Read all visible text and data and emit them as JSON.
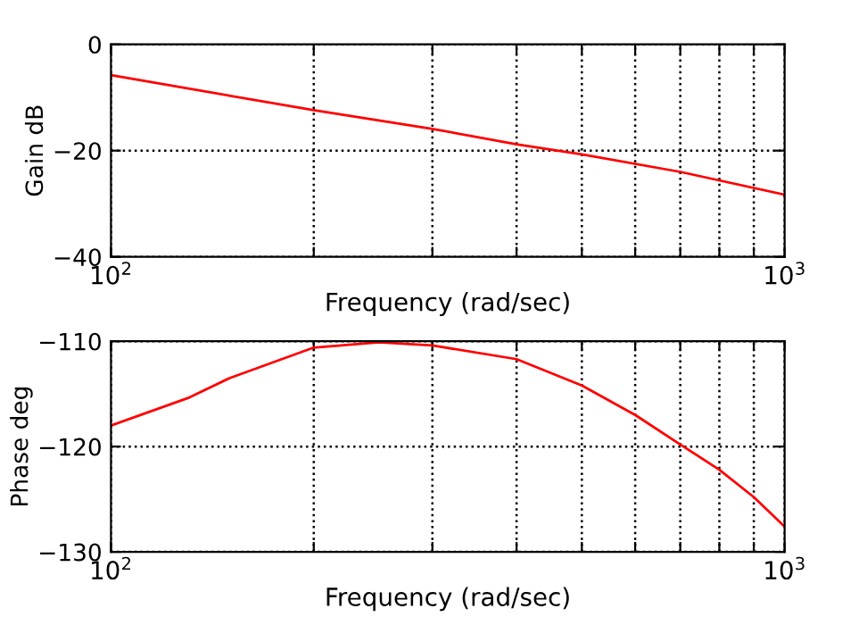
{
  "chart_data": [
    {
      "type": "line",
      "ylabel": "Gain dB",
      "xlabel": "Frequency (rad/sec)",
      "log": "x",
      "grid": true,
      "line_style": "solid",
      "marker": "none",
      "x": [
        100,
        200,
        300,
        400,
        500,
        700,
        1000
      ],
      "series": [
        {
          "color": "#ff0000",
          "values": [
            -5.8,
            -12.4,
            -15.9,
            -18.8,
            -20.7,
            -24.0,
            -28.3
          ]
        }
      ],
      "xlim": [
        100,
        1000
      ],
      "xticks": [
        {
          "value": 100,
          "label": "10$^{2}$"
        },
        {
          "value": 200,
          "label": null
        },
        {
          "value": 300,
          "label": null
        },
        {
          "value": 400,
          "label": null
        },
        {
          "value": 500,
          "label": null
        },
        {
          "value": 600,
          "label": null
        },
        {
          "value": 700,
          "label": null
        },
        {
          "value": 800,
          "label": null
        },
        {
          "value": 900,
          "label": null
        },
        {
          "value": 1000,
          "label": "10$^{3}$"
        }
      ],
      "ylim": [
        -40,
        0
      ],
      "yticks": [
        {
          "value": -40,
          "label": "−40"
        },
        {
          "value": -20,
          "label": "−20"
        },
        0
      ]
    },
    {
      "type": "line",
      "ylabel": "Phase deg",
      "xlabel": "Frequency (rad/sec)",
      "log": "x",
      "grid": true,
      "line_style": "solid",
      "marker": "none",
      "x": [
        100,
        130,
        150,
        200,
        250,
        300,
        400,
        500,
        600,
        700,
        800,
        900,
        1000
      ],
      "series": [
        {
          "color": "#ff0000",
          "values": [
            -118.0,
            -115.4,
            -113.5,
            -110.6,
            -110.1,
            -110.4,
            -111.7,
            -114.2,
            -117.0,
            -119.8,
            -122.2,
            -124.8,
            -127.6
          ]
        }
      ],
      "xlim": [
        100,
        1000
      ],
      "xticks": [
        {
          "value": 100,
          "label": "10$^{2}$"
        },
        {
          "value": 200,
          "label": null
        },
        {
          "value": 300,
          "label": null
        },
        {
          "value": 400,
          "label": null
        },
        {
          "value": 500,
          "label": null
        },
        {
          "value": 600,
          "label": null
        },
        {
          "value": 700,
          "label": null
        },
        {
          "value": 800,
          "label": null
        },
        {
          "value": 900,
          "label": null
        },
        {
          "value": 1000,
          "label": "10$^{3}$"
        }
      ],
      "ylim": [
        -130,
        -110
      ],
      "yticks": [
        {
          "value": -130,
          "label": "−130"
        },
        {
          "value": -120,
          "label": "−120"
        },
        {
          "value": -110,
          "label": "−110"
        }
      ]
    }
  ]
}
